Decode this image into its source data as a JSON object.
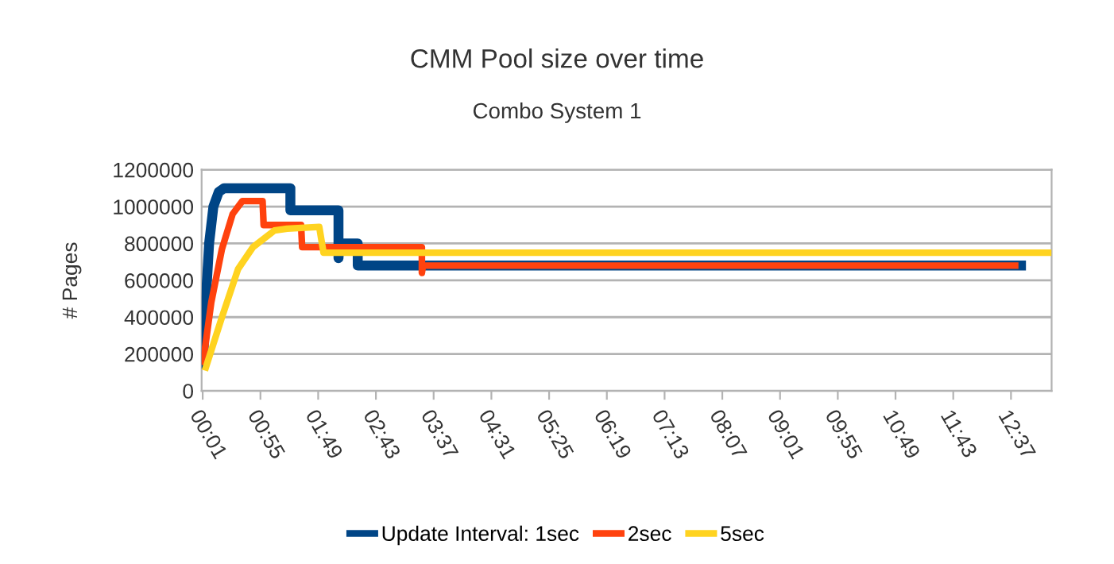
{
  "chart_data": {
    "type": "line",
    "title": "CMM Pool size over time",
    "subtitle": "Combo System 1",
    "ylabel": "# Pages",
    "xlim": [
      0,
      795
    ],
    "ylim": [
      0,
      1200000
    ],
    "xticks": [
      {
        "value": 1,
        "label": "00:01"
      },
      {
        "value": 55,
        "label": "00:55"
      },
      {
        "value": 109,
        "label": "01:49"
      },
      {
        "value": 163,
        "label": "02:43"
      },
      {
        "value": 217,
        "label": "03:37"
      },
      {
        "value": 271,
        "label": "04:31"
      },
      {
        "value": 325,
        "label": "05:25"
      },
      {
        "value": 379,
        "label": "06:19"
      },
      {
        "value": 433,
        "label": "07:13"
      },
      {
        "value": 487,
        "label": "08:07"
      },
      {
        "value": 541,
        "label": "09:01"
      },
      {
        "value": 595,
        "label": "09:55"
      },
      {
        "value": 649,
        "label": "10:49"
      },
      {
        "value": 703,
        "label": "11:43"
      },
      {
        "value": 757,
        "label": "12:37"
      }
    ],
    "yticks": [
      0,
      200000,
      400000,
      600000,
      800000,
      1000000,
      1200000
    ],
    "grid": "y",
    "legend": "bottom",
    "marker": "none",
    "line_style": "solid",
    "series": [
      {
        "name": "Update Interval: 1sec",
        "color": "#004586",
        "x": [
          1,
          4,
          7,
          11,
          16,
          21,
          83,
          83,
          128,
          128,
          129,
          130,
          146,
          146,
          205,
          771
        ],
        "values": [
          120000,
          500000,
          800000,
          1000000,
          1080000,
          1100000,
          1100000,
          980000,
          980000,
          720000,
          800000,
          800000,
          800000,
          680000,
          680000,
          680000
        ]
      },
      {
        "name": "2sec",
        "color": "#ff420e",
        "x": [
          1,
          9,
          19,
          29,
          38,
          57,
          58,
          93,
          94,
          206,
          206,
          207,
          764
        ],
        "values": [
          140000,
          480000,
          770000,
          960000,
          1030000,
          1030000,
          900000,
          900000,
          780000,
          780000,
          640000,
          680000,
          680000
        ]
      },
      {
        "name": "5sec",
        "color": "#ffd320",
        "x": [
          3,
          19,
          34,
          48,
          68,
          80,
          110,
          114,
          795
        ],
        "values": [
          110000,
          400000,
          660000,
          780000,
          870000,
          880000,
          890000,
          750000,
          750000
        ]
      }
    ]
  }
}
